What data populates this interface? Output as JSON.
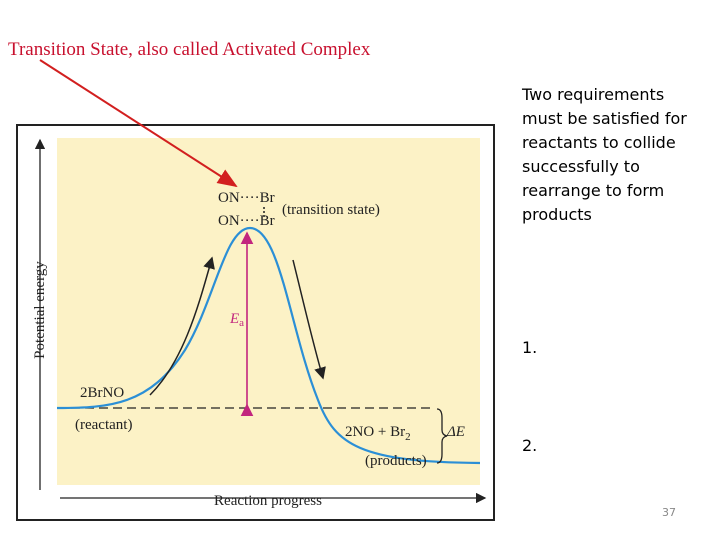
{
  "title": "Transition State, also called Activated Complex",
  "diagram": {
    "y_axis_label": "Potential energy",
    "x_axis_label": "Reaction progress",
    "transition_state": {
      "line_1": "ON····Br",
      "line_2": "ON····Br",
      "label": "(transition state)"
    },
    "activation_energy": {
      "symbol": "E",
      "subscript": "a"
    },
    "reactant": {
      "formula": "2BrNO",
      "label": "(reactant)"
    },
    "products": {
      "formula": "2NO + Br",
      "subscript": "2",
      "label": "(products)"
    },
    "energy_change": "ΔE"
  },
  "requirements": {
    "intro": "Two requirements must be satisfied for reactants to collide successfully to rearrange to form products",
    "items": [
      "1.",
      "2."
    ]
  },
  "page_number": "37"
}
